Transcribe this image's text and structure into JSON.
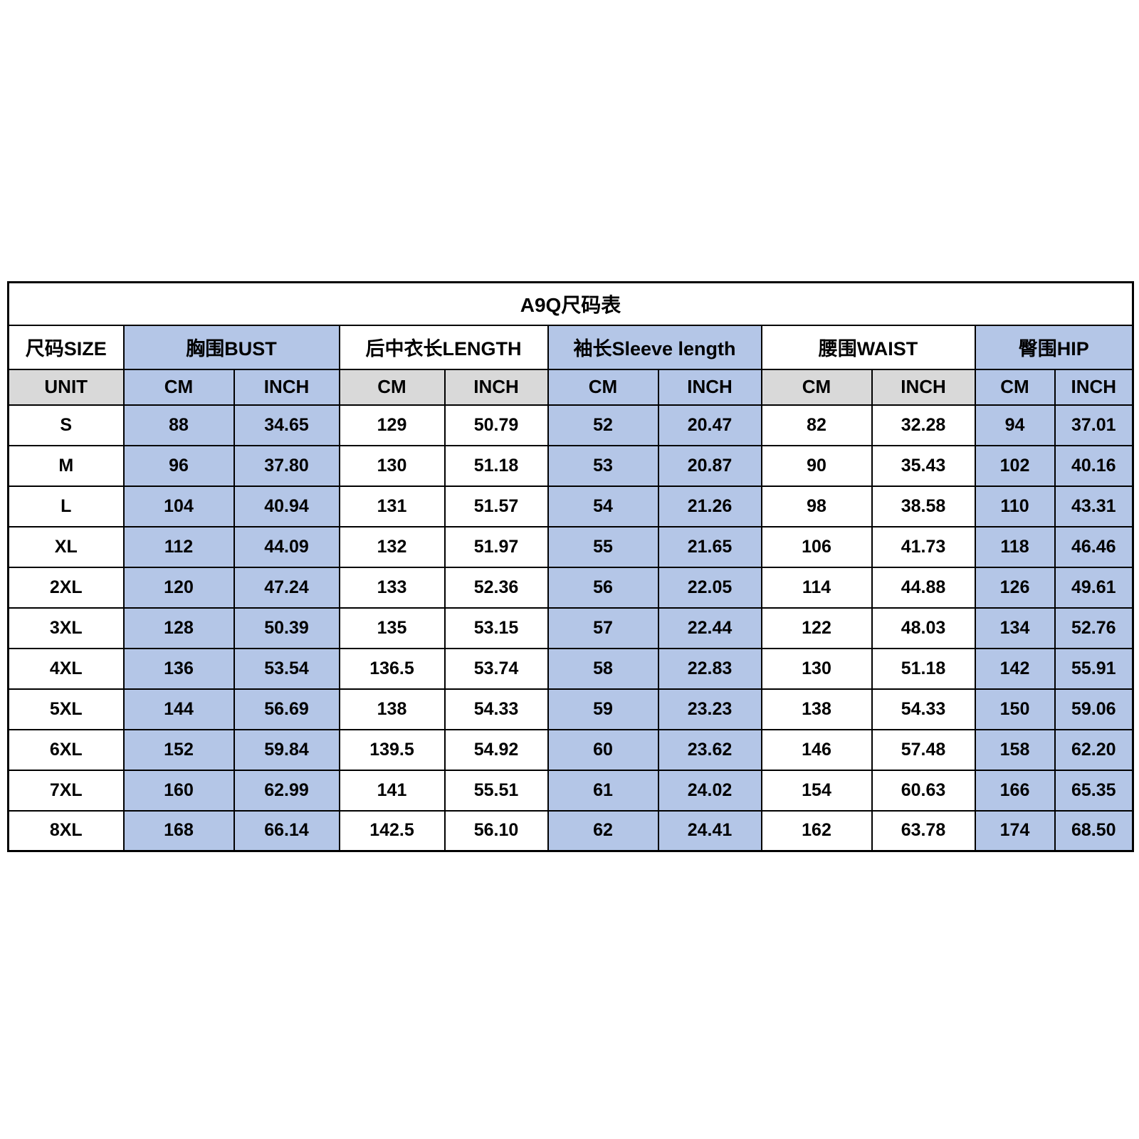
{
  "title": "A9Q尺码表",
  "colors": {
    "group_blue": "#b4c6e7",
    "unit_gray": "#d9d9d9",
    "border": "#000000",
    "background": "#ffffff"
  },
  "table": {
    "size_header": "尺码SIZE",
    "unit_header": "UNIT",
    "units": [
      "CM",
      "INCH"
    ],
    "groups": [
      {
        "label": "胸围BUST"
      },
      {
        "label": "后中衣长LENGTH"
      },
      {
        "label": "袖长Sleeve length"
      },
      {
        "label": "腰围WAIST"
      },
      {
        "label": "臀围HIP"
      }
    ],
    "rows": [
      {
        "size": "S",
        "values": [
          "88",
          "34.65",
          "129",
          "50.79",
          "52",
          "20.47",
          "82",
          "32.28",
          "94",
          "37.01"
        ]
      },
      {
        "size": "M",
        "values": [
          "96",
          "37.80",
          "130",
          "51.18",
          "53",
          "20.87",
          "90",
          "35.43",
          "102",
          "40.16"
        ]
      },
      {
        "size": "L",
        "values": [
          "104",
          "40.94",
          "131",
          "51.57",
          "54",
          "21.26",
          "98",
          "38.58",
          "110",
          "43.31"
        ]
      },
      {
        "size": "XL",
        "values": [
          "112",
          "44.09",
          "132",
          "51.97",
          "55",
          "21.65",
          "106",
          "41.73",
          "118",
          "46.46"
        ]
      },
      {
        "size": "2XL",
        "values": [
          "120",
          "47.24",
          "133",
          "52.36",
          "56",
          "22.05",
          "114",
          "44.88",
          "126",
          "49.61"
        ]
      },
      {
        "size": "3XL",
        "values": [
          "128",
          "50.39",
          "135",
          "53.15",
          "57",
          "22.44",
          "122",
          "48.03",
          "134",
          "52.76"
        ]
      },
      {
        "size": "4XL",
        "values": [
          "136",
          "53.54",
          "136.5",
          "53.74",
          "58",
          "22.83",
          "130",
          "51.18",
          "142",
          "55.91"
        ]
      },
      {
        "size": "5XL",
        "values": [
          "144",
          "56.69",
          "138",
          "54.33",
          "59",
          "23.23",
          "138",
          "54.33",
          "150",
          "59.06"
        ]
      },
      {
        "size": "6XL",
        "values": [
          "152",
          "59.84",
          "139.5",
          "54.92",
          "60",
          "23.62",
          "146",
          "57.48",
          "158",
          "62.20"
        ]
      },
      {
        "size": "7XL",
        "values": [
          "160",
          "62.99",
          "141",
          "55.51",
          "61",
          "24.02",
          "154",
          "60.63",
          "166",
          "65.35"
        ]
      },
      {
        "size": "8XL",
        "values": [
          "168",
          "66.14",
          "142.5",
          "56.10",
          "62",
          "24.41",
          "162",
          "63.78",
          "174",
          "68.50"
        ]
      }
    ]
  }
}
